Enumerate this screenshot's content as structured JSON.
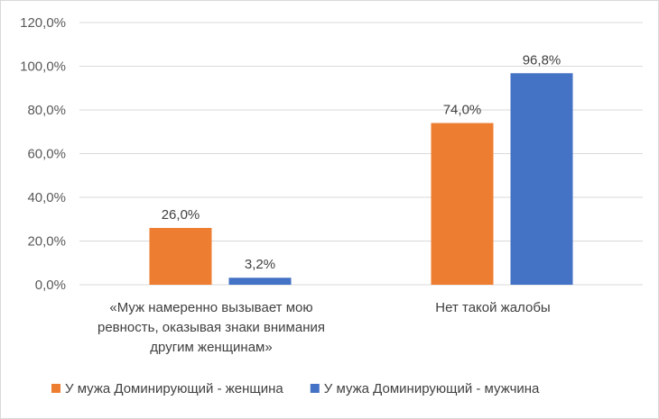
{
  "chart_data": {
    "type": "bar",
    "categories": [
      [
        "«Муж намеренно вызывает мою",
        "ревность, оказывая знаки внимания",
        "другим женщинам»"
      ],
      [
        "Нет такой жалобы"
      ]
    ],
    "series": [
      {
        "name": "У мужа Доминирующий - женщина",
        "values": [
          26.0,
          74.0
        ],
        "labels": [
          "26,0%",
          "74,0%"
        ],
        "color": "#ED7D31"
      },
      {
        "name": "У мужа Доминирующий - мужчина",
        "values": [
          3.2,
          96.8
        ],
        "labels": [
          "3,2%",
          "96,8%"
        ],
        "color": "#4472C4"
      }
    ],
    "ylim": [
      0,
      120
    ],
    "yticks": [
      {
        "value": 0,
        "label": "0,0%"
      },
      {
        "value": 20,
        "label": "20,0%"
      },
      {
        "value": 40,
        "label": "40,0%"
      },
      {
        "value": 60,
        "label": "60,0%"
      },
      {
        "value": 80,
        "label": "80,0%"
      },
      {
        "value": 100,
        "label": "100,0%"
      },
      {
        "value": 120,
        "label": "120,0%"
      }
    ],
    "grid": true,
    "legend_position": "bottom",
    "title": "",
    "xlabel": "",
    "ylabel": ""
  }
}
